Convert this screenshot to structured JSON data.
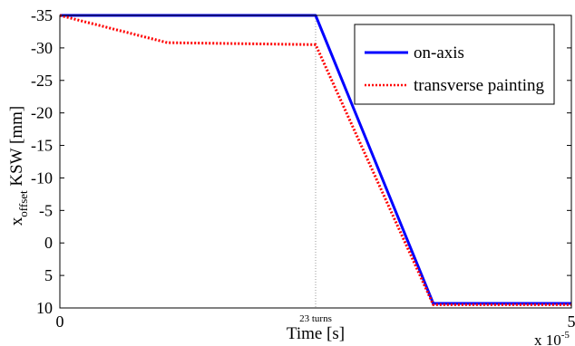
{
  "chart_data": {
    "type": "line",
    "xlabel": "Time [s]",
    "ylabel": {
      "base": "x",
      "subscript": "offset",
      "rest": " KSW [mm]"
    },
    "xlim": [
      0,
      5
    ],
    "ylim": [
      -35,
      10
    ],
    "y_reversed": true,
    "x_multiplier": {
      "base": "x 10",
      "exponent": "-5"
    },
    "x_ticks": [
      "0",
      "5"
    ],
    "y_ticks": [
      "-35",
      "-30",
      "-25",
      "-20",
      "-15",
      "-10",
      "-5",
      "0",
      "5",
      "10"
    ],
    "y_tick_values": [
      -35,
      -30,
      -25,
      -20,
      -15,
      -10,
      -5,
      0,
      5,
      10
    ],
    "annotation": {
      "label": "23 turns",
      "x": 2.5
    },
    "legend_position": "top-right",
    "series": [
      {
        "name": "on-axis",
        "color": "#0000ff",
        "style": "solid",
        "x": [
          0,
          2.5,
          3.65,
          5
        ],
        "y": [
          -35,
          -35,
          9.3,
          9.3
        ]
      },
      {
        "name": "transverse painting",
        "color": "#ff0000",
        "style": "dotted",
        "x": [
          0,
          1.05,
          2.5,
          3.65,
          5
        ],
        "y": [
          -35,
          -30.8,
          -30.5,
          9.5,
          9.5
        ]
      }
    ]
  }
}
